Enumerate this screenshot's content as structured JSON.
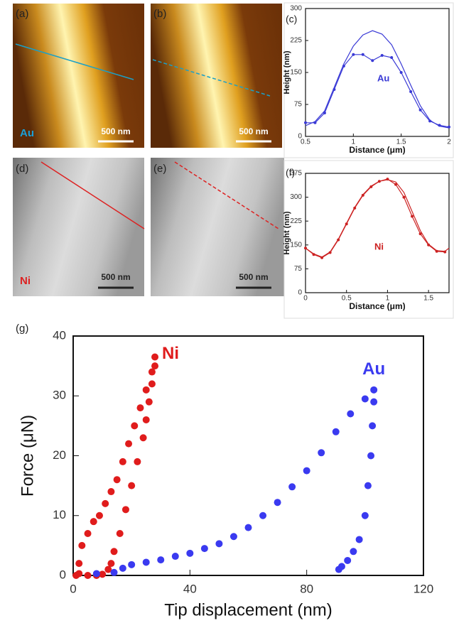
{
  "images": [
    {
      "label": "(a)",
      "material": "Au",
      "scale_bar": "500 nm"
    },
    {
      "label": "(b)",
      "scale_bar": "500 nm"
    },
    {
      "label": "(d)",
      "material": "Ni",
      "scale_bar": "500 nm"
    },
    {
      "label": "(e)",
      "scale_bar": "500 nm"
    }
  ],
  "chart_data": [
    {
      "type": "line",
      "panel_label": "(c)",
      "xlabel": "Distance (μm)",
      "ylabel": "Height (nm)",
      "annotation": "Au",
      "xlim": [
        0.5,
        2
      ],
      "xticks": [
        0.5,
        1,
        1.5,
        2
      ],
      "ylim": [
        0,
        300
      ],
      "yticks": [
        0,
        75,
        150,
        225,
        300
      ],
      "series": [
        {
          "color": "#3a3ad6",
          "markers": false,
          "x": [
            0.5,
            0.6,
            0.7,
            0.8,
            0.9,
            1.0,
            1.1,
            1.2,
            1.3,
            1.4,
            1.5,
            1.6,
            1.7,
            1.8,
            1.9,
            2.0
          ],
          "values": [
            25,
            35,
            60,
            115,
            170,
            212,
            238,
            248,
            240,
            215,
            170,
            120,
            72,
            38,
            24,
            20
          ]
        },
        {
          "color": "#3a3ad6",
          "markers": true,
          "x": [
            0.5,
            0.6,
            0.7,
            0.8,
            0.9,
            1.0,
            1.1,
            1.2,
            1.3,
            1.4,
            1.5,
            1.6,
            1.7,
            1.8,
            1.9,
            2.0
          ],
          "values": [
            32,
            32,
            55,
            110,
            165,
            192,
            192,
            178,
            190,
            185,
            150,
            105,
            62,
            36,
            26,
            22
          ]
        }
      ]
    },
    {
      "type": "line",
      "panel_label": "(f)",
      "xlabel": "Distance (μm)",
      "ylabel": "Height (nm)",
      "annotation": "Ni",
      "xlim": [
        0,
        1.75
      ],
      "xticks": [
        0,
        0.5,
        1,
        1.5
      ],
      "ylim": [
        0,
        375
      ],
      "yticks": [
        0,
        75,
        150,
        225,
        300,
        375
      ],
      "series": [
        {
          "color": "#cc2222",
          "markers": false,
          "x": [
            0,
            0.1,
            0.2,
            0.3,
            0.4,
            0.5,
            0.6,
            0.7,
            0.8,
            0.9,
            1.0,
            1.1,
            1.2,
            1.3,
            1.4,
            1.5,
            1.6,
            1.7,
            1.75
          ],
          "values": [
            140,
            122,
            112,
            128,
            168,
            218,
            268,
            308,
            335,
            350,
            355,
            348,
            315,
            255,
            195,
            152,
            132,
            130,
            140
          ]
        },
        {
          "color": "#cc2222",
          "markers": true,
          "x": [
            0,
            0.1,
            0.2,
            0.3,
            0.4,
            0.5,
            0.6,
            0.7,
            0.8,
            0.9,
            1.0,
            1.1,
            1.2,
            1.3,
            1.4,
            1.5,
            1.6,
            1.7
          ],
          "values": [
            140,
            120,
            110,
            126,
            166,
            216,
            266,
            306,
            333,
            350,
            357,
            340,
            300,
            240,
            185,
            150,
            130,
            128
          ]
        }
      ]
    },
    {
      "type": "scatter",
      "panel_label": "(g)",
      "xlabel": "Tip displacement (nm)",
      "ylabel": "Force (μN)",
      "xlim": [
        0,
        120
      ],
      "xticks": [
        0,
        40,
        80,
        120
      ],
      "ylim": [
        0,
        40
      ],
      "yticks": [
        0,
        10,
        20,
        30,
        40
      ],
      "series": [
        {
          "name": "Ni",
          "color": "#e01c1c",
          "x": [
            1,
            2,
            3,
            5,
            7,
            9,
            11,
            13,
            15,
            17,
            19,
            21,
            23,
            25,
            27,
            28,
            28,
            27,
            26,
            25,
            24,
            22,
            20,
            18,
            16,
            14,
            13,
            12,
            10,
            8,
            5,
            2
          ],
          "values": [
            0,
            2,
            5,
            7,
            9,
            10,
            12,
            14,
            16,
            19,
            22,
            25,
            28,
            31,
            34,
            36.5,
            35,
            32,
            29,
            26,
            23,
            19,
            15,
            11,
            7,
            4,
            2,
            1,
            0.2,
            0,
            0,
            0.3
          ]
        },
        {
          "name": "Au",
          "color": "#3a3af0",
          "x": [
            8,
            14,
            17,
            20,
            25,
            30,
            35,
            40,
            45,
            50,
            55,
            60,
            65,
            70,
            75,
            80,
            85,
            90,
            95,
            100,
            103,
            103,
            102.5,
            102,
            101,
            100,
            98,
            96,
            94,
            92,
            91
          ],
          "values": [
            0.3,
            0.5,
            1.2,
            1.8,
            2.2,
            2.6,
            3.2,
            3.7,
            4.5,
            5.3,
            6.5,
            8,
            10,
            12.2,
            14.8,
            17.5,
            20.5,
            24,
            27,
            29.5,
            31,
            29,
            25,
            20,
            15,
            10,
            6,
            4,
            2.5,
            1.5,
            1
          ]
        }
      ]
    }
  ]
}
